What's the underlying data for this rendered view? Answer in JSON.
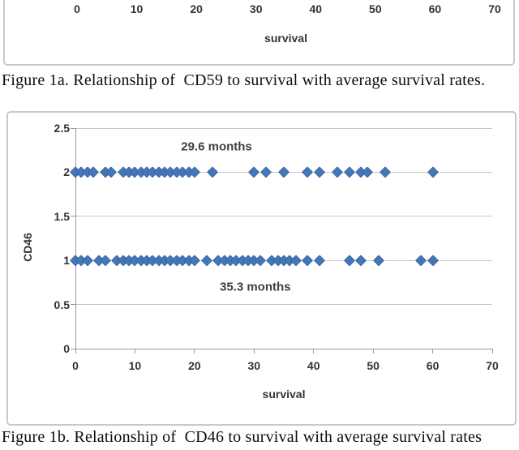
{
  "figure_1a": {
    "caption": "Figure 1a. Relationship of  CD59 to survival with average survival rates."
  },
  "figure_1b": {
    "caption": "Figure 1b. Relationship of  CD46 to survival with average survival rates"
  },
  "chart_data": [
    {
      "id": "figure-1a",
      "type": "scatter",
      "xlabel": "survival",
      "xlim": [
        0,
        70
      ],
      "x_ticks": [
        0,
        10,
        20,
        30,
        40,
        50,
        60,
        70
      ]
    },
    {
      "id": "figure-1b",
      "type": "scatter",
      "xlabel": "survival",
      "ylabel": "CD46",
      "xlim": [
        0,
        70
      ],
      "ylim": [
        0,
        2.5
      ],
      "x_ticks": [
        0,
        10,
        20,
        30,
        40,
        50,
        60,
        70
      ],
      "y_ticks": [
        0,
        0.5,
        1,
        1.5,
        2,
        2.5
      ],
      "grid": true,
      "legend": "none",
      "marker": "diamond",
      "marker_color": "#4577b8",
      "annotations": [
        {
          "text": "29.6 months",
          "x": 23.7,
          "y": 2.29
        },
        {
          "text": "35.3 months",
          "x": 30.2,
          "y": 0.7
        }
      ],
      "series": [
        {
          "name": "CD46 = 2",
          "y": 2,
          "x_values": [
            0,
            1,
            2,
            3,
            5,
            6,
            8,
            9,
            10,
            11,
            12,
            13,
            14,
            15,
            16,
            17,
            18,
            19,
            20,
            23,
            30,
            32,
            35,
            39,
            41,
            44,
            46,
            48,
            49,
            52,
            60
          ]
        },
        {
          "name": "CD46 = 1",
          "y": 1,
          "x_values": [
            0,
            1,
            2,
            4,
            5,
            7,
            8,
            9,
            10,
            11,
            12,
            13,
            14,
            15,
            16,
            17,
            18,
            19,
            20,
            22,
            24,
            25,
            26,
            27,
            28,
            29,
            30,
            31,
            33,
            34,
            35,
            36,
            37,
            39,
            41,
            46,
            48,
            51,
            58,
            60
          ]
        }
      ]
    }
  ]
}
